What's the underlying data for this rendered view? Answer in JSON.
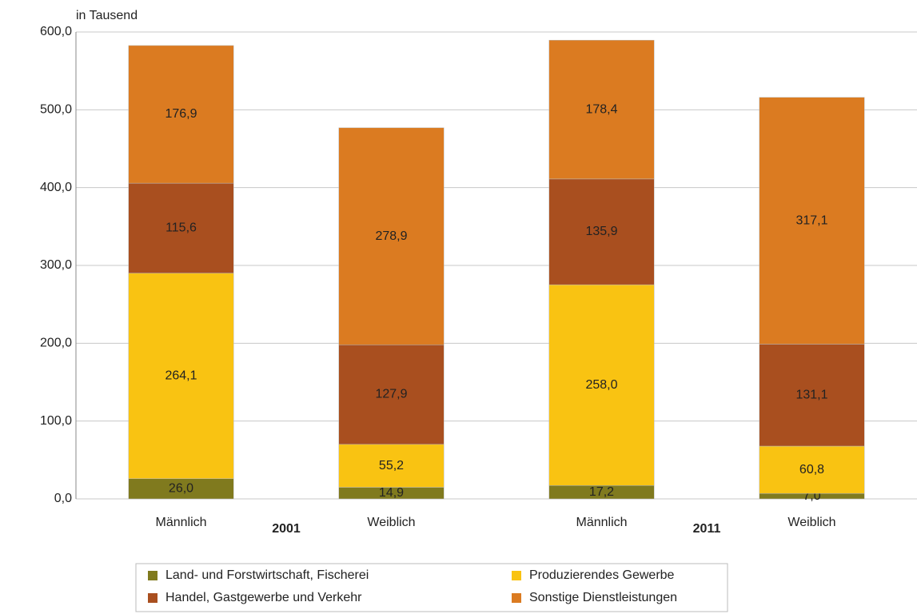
{
  "chart_data": {
    "type": "stacked_bar",
    "y_label": "in Tausend",
    "categories": [
      "Männlich",
      "Weiblich",
      "Männlich",
      "Weiblich"
    ],
    "groups": [
      "2001",
      "2011"
    ],
    "series": [
      {
        "name": "Land- und Forstwirtschaft, Fischerei",
        "color": "#807a1e",
        "values": [
          26.0,
          14.9,
          17.2,
          7.0
        ],
        "value_labels": [
          "26,0",
          "14,9",
          "17,2",
          "7,0"
        ]
      },
      {
        "name": "Produzierendes Gewerbe",
        "color": "#f9c312",
        "values": [
          264.1,
          55.2,
          258.0,
          60.8
        ],
        "value_labels": [
          "264,1",
          "55,2",
          "258,0",
          "60,8"
        ]
      },
      {
        "name": "Handel, Gastgewerbe und Verkehr",
        "color": "#a94f1f",
        "values": [
          115.6,
          127.9,
          135.9,
          131.1
        ],
        "value_labels": [
          "115,6",
          "127,9",
          "135,9",
          "131,1"
        ]
      },
      {
        "name": "Sonstige Dienstleistungen",
        "color": "#db7b21",
        "values": [
          176.9,
          278.9,
          178.4,
          317.1
        ],
        "value_labels": [
          "176,9",
          "278,9",
          "178,4",
          "317,1"
        ]
      }
    ],
    "ylim": [
      0,
      600
    ],
    "yticks": [
      {
        "value": 0,
        "label": "0,0"
      },
      {
        "value": 100,
        "label": "100,0"
      },
      {
        "value": 200,
        "label": "200,0"
      },
      {
        "value": 300,
        "label": "300,0"
      },
      {
        "value": 400,
        "label": "400,0"
      },
      {
        "value": 500,
        "label": "500,0"
      },
      {
        "value": 600,
        "label": "600,0"
      }
    ],
    "grid": true
  }
}
